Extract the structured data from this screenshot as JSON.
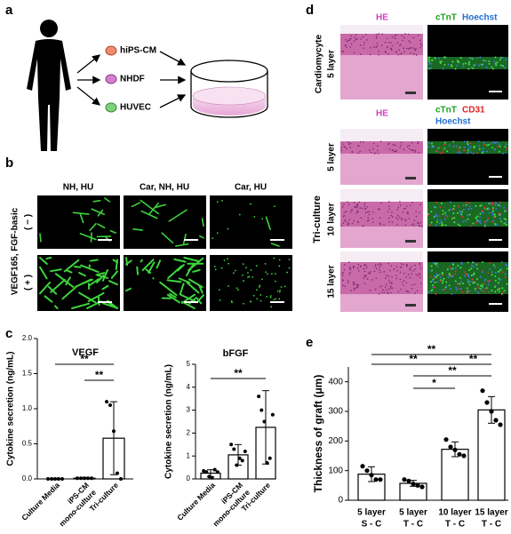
{
  "panel_labels": [
    "a",
    "b",
    "c",
    "d",
    "e"
  ],
  "a": {
    "cells": [
      "hiPS-CM",
      "NHDF",
      "HUVEC"
    ]
  },
  "b": {
    "columns": [
      "NH, HU",
      "Car, NH, HU",
      "Car, HU"
    ],
    "row_title": "VEGF165, FGF-basic",
    "rows": [
      "( − )",
      "( + )"
    ]
  },
  "d": {
    "cardio": {
      "group": "Cardiomycyte",
      "row": "5 layer",
      "he": "HE",
      "stain": [
        "cTnT",
        "Hoechst"
      ]
    },
    "tri": {
      "group": "Tri-culture",
      "he": "HE",
      "stain": [
        "cTnT",
        "CD31",
        "Hoechst"
      ],
      "rows": [
        "5 layer",
        "10 layer",
        "15 layer"
      ]
    }
  },
  "chart_data": [
    {
      "type": "bar",
      "title": "VEGF",
      "y_label": "Cytokine secretion (ng/mL)",
      "categories": [
        [
          "Culture Media"
        ],
        [
          "iPS-CM",
          "mono-culture"
        ],
        [
          "Tri-culture"
        ]
      ],
      "values": [
        0.0,
        0.01,
        0.58
      ],
      "errors": [
        0.01,
        0.01,
        0.52
      ],
      "points": [
        [
          0,
          0,
          0,
          0,
          0
        ],
        [
          0.01,
          0.01,
          0.01,
          0.01,
          0.01
        ],
        [
          1.1,
          1.05,
          0.68,
          0.08,
          0.0
        ]
      ],
      "ylim": [
        0,
        2
      ],
      "yticks": [
        {
          "value": 0,
          "label": "0.0"
        },
        0.5,
        {
          "value": 1,
          "label": "1.0"
        },
        1.5,
        {
          "value": 2,
          "label": "2.0"
        }
      ],
      "significance": [
        "**",
        "**"
      ]
    },
    {
      "type": "bar",
      "title": "bFGF",
      "y_label": "Cytokine secretion (ng/mL)",
      "categories": [
        [
          "Culture Media"
        ],
        [
          "iPS-CM",
          "mono-culture"
        ],
        [
          "Tri-culture"
        ]
      ],
      "values": [
        0.25,
        1.05,
        2.25
      ],
      "errors": [
        0.15,
        0.45,
        1.6
      ],
      "points": [
        [
          0.35,
          0.3,
          0.1,
          0.05,
          0.4,
          0.3
        ],
        [
          1.5,
          1.3,
          0.6,
          0.9,
          0.8,
          1.2
        ],
        [
          3.6,
          3.0,
          2.5,
          0.7,
          0.9,
          2.8
        ]
      ],
      "ylim": [
        0,
        5
      ],
      "yticks": [
        0,
        1,
        2,
        3,
        4,
        5
      ],
      "significance": [
        "**"
      ]
    },
    {
      "type": "bar",
      "title": null,
      "y_label": "Thickness of graft (μm)",
      "categories": [
        [
          "5 layer",
          "S - C"
        ],
        [
          "5 layer",
          "T - C"
        ],
        [
          "10 layer",
          "T - C"
        ],
        [
          "15 layer",
          "T - C"
        ]
      ],
      "values": [
        88,
        57,
        172,
        305
      ],
      "errors": [
        25,
        10,
        25,
        45
      ],
      "points": [
        [
          115,
          100,
          85,
          70,
          70
        ],
        [
          70,
          65,
          55,
          50,
          45
        ],
        [
          205,
          180,
          170,
          155,
          150
        ],
        [
          370,
          330,
          300,
          270,
          255
        ]
      ],
      "ylim": [
        0,
        450
      ],
      "yticks": [
        0,
        100,
        200,
        300,
        400
      ],
      "significance": [
        "**",
        "**",
        "**",
        "**",
        "*"
      ]
    }
  ]
}
